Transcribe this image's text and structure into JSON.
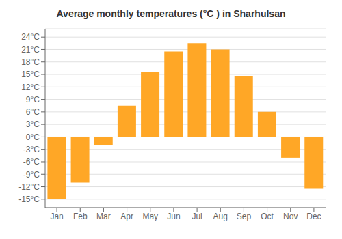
{
  "chart_data": {
    "type": "bar",
    "title": "Average monthly temperatures (°C ) in Sharhulsan",
    "categories": [
      "Jan",
      "Feb",
      "Mar",
      "Apr",
      "May",
      "Jun",
      "Jul",
      "Aug",
      "Sep",
      "Oct",
      "Nov",
      "Dec"
    ],
    "values": [
      -15,
      -11,
      -2,
      7.5,
      15.5,
      20.5,
      22.5,
      21,
      14.5,
      6,
      -5,
      -12.5
    ],
    "color": "#FFA726",
    "ylim": [
      -17,
      26
    ],
    "yticks": [
      {
        "value": -15,
        "label": "-15°C"
      },
      {
        "value": -12,
        "label": "-12°C"
      },
      {
        "value": -9,
        "label": "-9°C"
      },
      {
        "value": -6,
        "label": "-6°C"
      },
      {
        "value": -3,
        "label": "-3°C"
      },
      {
        "value": 0,
        "label": "0°C"
      },
      {
        "value": 3,
        "label": "3°C"
      },
      {
        "value": 6,
        "label": "6°C"
      },
      {
        "value": 9,
        "label": "9°C"
      },
      {
        "value": 12,
        "label": "12°C"
      },
      {
        "value": 15,
        "label": "15°C"
      },
      {
        "value": 18,
        "label": "18°C"
      },
      {
        "value": 21,
        "label": "21°C"
      },
      {
        "value": 24,
        "label": "24°C"
      }
    ],
    "grid": true
  }
}
